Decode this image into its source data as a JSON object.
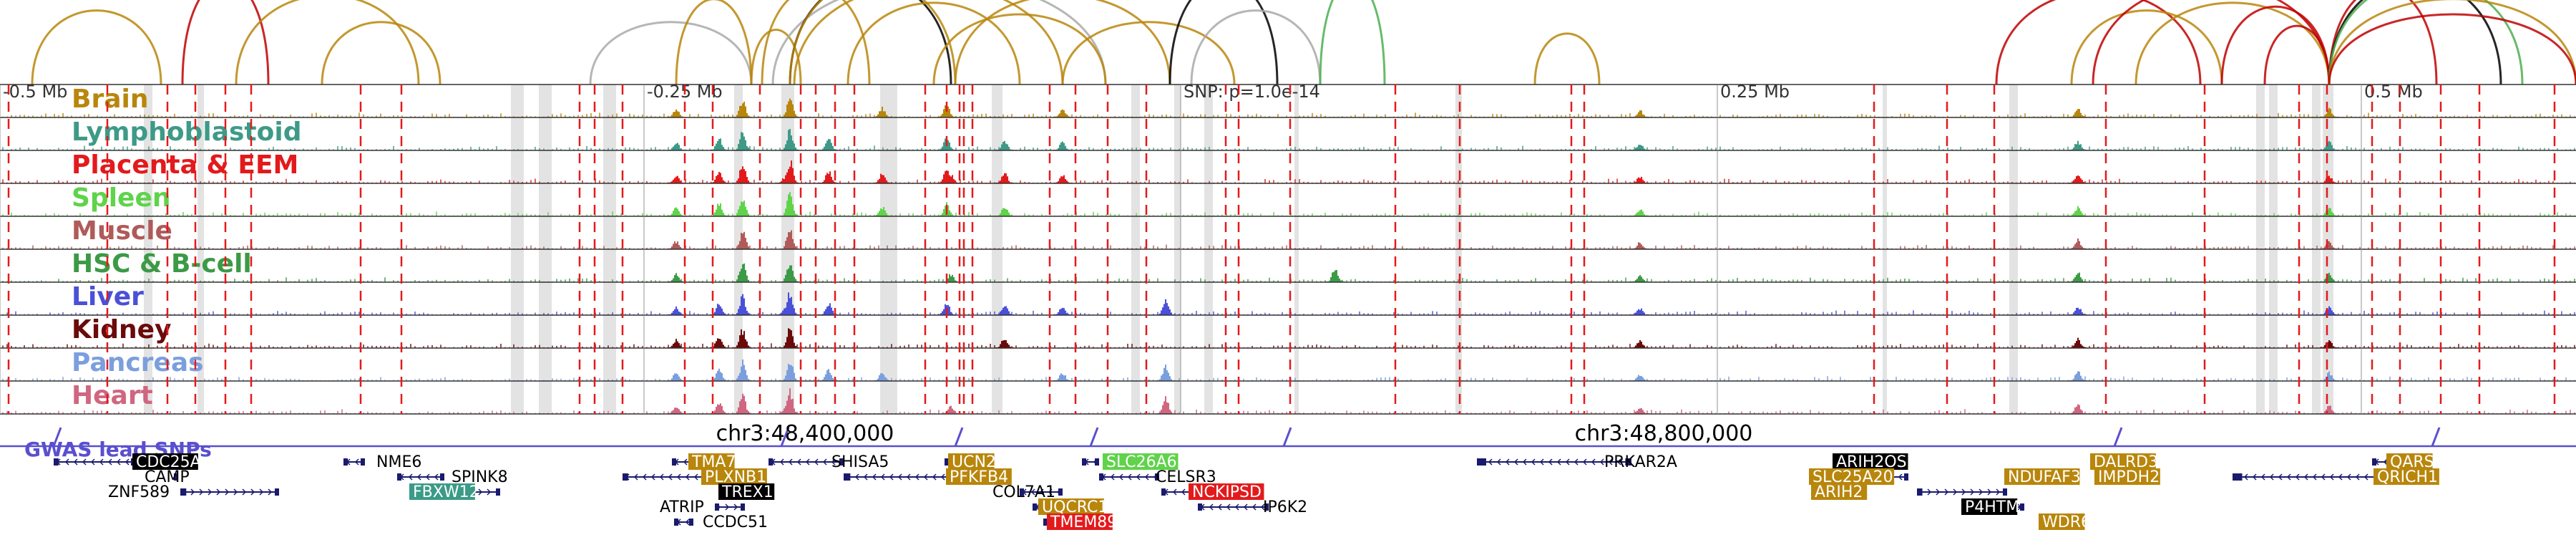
{
  "chart_data": {
    "type": "genome-browser",
    "x_unit": "bp",
    "region": {
      "chrom": "chr3",
      "start": 48025000,
      "end": 49225000
    },
    "distance_labels": [
      {
        "label": "-0.5 Mb",
        "pos": 48025000
      },
      {
        "label": "-0.25 Mb",
        "pos": 48325000
      },
      {
        "label": "SNP: p=1.0e-14",
        "pos": 48575000
      },
      {
        "label": "0.25 Mb",
        "pos": 48825000
      },
      {
        "label": "0.5 Mb",
        "pos": 49125000
      }
    ],
    "coordinate_labels": [
      {
        "label": "chr3:48,400,000",
        "pos": 48400000
      },
      {
        "label": "chr3:48,800,000",
        "pos": 48800000
      }
    ],
    "tracks": [
      {
        "name": "Brain",
        "color": "#b8860b"
      },
      {
        "name": "Lymphoblastoid",
        "color": "#3e9a87"
      },
      {
        "name": "Placenta & EEM",
        "color": "#e31a1c"
      },
      {
        "name": "Spleen",
        "color": "#5fd34a"
      },
      {
        "name": "Muscle",
        "color": "#b05a5a"
      },
      {
        "name": "HSC & B-cell",
        "color": "#3c9a46"
      },
      {
        "name": "Liver",
        "color": "#4a50d8"
      },
      {
        "name": "Kidney",
        "color": "#6b0a0a"
      },
      {
        "name": "Pancreas",
        "color": "#7b9fde"
      },
      {
        "name": "Heart",
        "color": "#d06680"
      }
    ],
    "signal_peaks": [
      {
        "pos": 48340000,
        "height": 0.35,
        "tracks": [
          0,
          1,
          2,
          3,
          4,
          5,
          6,
          7,
          8,
          9
        ]
      },
      {
        "pos": 48360000,
        "height": 0.55,
        "tracks": [
          1,
          2,
          3,
          6,
          7,
          8,
          9
        ]
      },
      {
        "pos": 48371000,
        "height": 0.8,
        "tracks": [
          0,
          1,
          2,
          3,
          4,
          5,
          6,
          7,
          8,
          9
        ]
      },
      {
        "pos": 48391000,
        "height": 0.3,
        "tracks": [
          2,
          6,
          9
        ]
      },
      {
        "pos": 48393000,
        "height": 0.95,
        "tracks": [
          0,
          1,
          2,
          3,
          4,
          5,
          6,
          7,
          8,
          9
        ]
      },
      {
        "pos": 48411000,
        "height": 0.5,
        "tracks": [
          1,
          2,
          6,
          8
        ]
      },
      {
        "pos": 48436000,
        "height": 0.4,
        "tracks": [
          0,
          2,
          3,
          8
        ]
      },
      {
        "pos": 48466000,
        "height": 0.55,
        "tracks": [
          0,
          1,
          2,
          3,
          6
        ]
      },
      {
        "pos": 48468000,
        "height": 0.35,
        "tracks": [
          2,
          5,
          9
        ]
      },
      {
        "pos": 48493000,
        "height": 0.45,
        "tracks": [
          1,
          2,
          3,
          6,
          7
        ]
      },
      {
        "pos": 48520000,
        "height": 0.35,
        "tracks": [
          0,
          1,
          2,
          6,
          8
        ]
      },
      {
        "pos": 48568000,
        "height": 0.7,
        "tracks": [
          6,
          8,
          9
        ]
      },
      {
        "pos": 48647000,
        "height": 0.6,
        "tracks": [
          5
        ]
      },
      {
        "pos": 48789000,
        "height": 0.3,
        "tracks": [
          0,
          1,
          2,
          3,
          4,
          5,
          6,
          7,
          8,
          9
        ]
      },
      {
        "pos": 48993000,
        "height": 0.4,
        "tracks": [
          0,
          1,
          2,
          3,
          4,
          5,
          6,
          7,
          8,
          9
        ]
      },
      {
        "pos": 49110000,
        "height": 0.35,
        "tracks": [
          0,
          1,
          2,
          3,
          4,
          5,
          6,
          7,
          8,
          9
        ]
      }
    ],
    "highlight_regions": [
      {
        "start": 48092000,
        "end": 48096000
      },
      {
        "start": 48117000,
        "end": 48120000
      },
      {
        "start": 48263000,
        "end": 48269000
      },
      {
        "start": 48276000,
        "end": 48282000
      },
      {
        "start": 48306000,
        "end": 48312000
      },
      {
        "start": 48367000,
        "end": 48371000
      },
      {
        "start": 48389000,
        "end": 48395000
      },
      {
        "start": 48435000,
        "end": 48443000
      },
      {
        "start": 48487000,
        "end": 48492000
      },
      {
        "start": 48552000,
        "end": 48556000
      },
      {
        "start": 48572000,
        "end": 48575000
      },
      {
        "start": 48586000,
        "end": 48590000
      },
      {
        "start": 48628000,
        "end": 48630000
      },
      {
        "start": 48703000,
        "end": 48706000
      },
      {
        "start": 48902000,
        "end": 48904000
      },
      {
        "start": 48961000,
        "end": 48965000
      },
      {
        "start": 49076000,
        "end": 49080000
      },
      {
        "start": 49082000,
        "end": 49086000
      },
      {
        "start": 49102000,
        "end": 49106000
      },
      {
        "start": 49107000,
        "end": 49112000
      }
    ],
    "marker_lines": [
      48029000,
      48075000,
      48103000,
      48116000,
      48130000,
      48142000,
      48193000,
      48212000,
      48295000,
      48302000,
      48315000,
      48344000,
      48357000,
      48379000,
      48398000,
      48405000,
      48414000,
      48423000,
      48456000,
      48466000,
      48472000,
      48474000,
      48478000,
      48514000,
      48526000,
      48541000,
      48559000,
      48596000,
      48602000,
      48626000,
      48675000,
      48705000,
      48757000,
      48763000,
      48898000,
      48932000,
      48954000,
      49006000,
      49052000,
      49096000,
      49109000,
      49130000,
      49143000,
      49162000,
      49180000,
      49215000
    ],
    "gwas_lead_snps": {
      "label": "GWAS lead SNPs",
      "color": "#5a4fcf",
      "positions": [
        48050000,
        48389000,
        48470000,
        48533000,
        48623000,
        49010000,
        49158000
      ]
    },
    "arcs": [
      {
        "start": 48040000,
        "end": 48100000,
        "color": "#b8860b",
        "h": 0.6
      },
      {
        "start": 48110000,
        "end": 48150000,
        "color": "#c00000",
        "h": 1.0
      },
      {
        "start": 48135000,
        "end": 48220000,
        "color": "#b8860b",
        "h": 0.8
      },
      {
        "start": 48175000,
        "end": 48230000,
        "color": "#b8860b",
        "h": 0.45
      },
      {
        "start": 48300000,
        "end": 48375000,
        "color": "#a9a9a9",
        "h": 0.45
      },
      {
        "start": 48340000,
        "end": 48375000,
        "color": "#b8860b",
        "h": 0.75
      },
      {
        "start": 48375000,
        "end": 48398000,
        "color": "#b8860b",
        "h": 0.35
      },
      {
        "start": 48380000,
        "end": 48430000,
        "color": "#b8860b",
        "h": 0.9
      },
      {
        "start": 48385000,
        "end": 48540000,
        "color": "#a9a9a9",
        "h": 1.0
      },
      {
        "start": 48393000,
        "end": 48468000,
        "color": "#000000",
        "h": 1.0
      },
      {
        "start": 48393000,
        "end": 48470000,
        "color": "#b8860b",
        "h": 1.0
      },
      {
        "start": 48395000,
        "end": 48520000,
        "color": "#b8860b",
        "h": 0.95
      },
      {
        "start": 48420000,
        "end": 48500000,
        "color": "#b8860b",
        "h": 0.7
      },
      {
        "start": 48460000,
        "end": 48540000,
        "color": "#b8860b",
        "h": 0.55
      },
      {
        "start": 48470000,
        "end": 48570000,
        "color": "#b8860b",
        "h": 0.8
      },
      {
        "start": 48520000,
        "end": 48600000,
        "color": "#b8860b",
        "h": 0.45
      },
      {
        "start": 48570000,
        "end": 48620000,
        "color": "#000000",
        "h": 1.0
      },
      {
        "start": 48580000,
        "end": 48640000,
        "color": "#a9a9a9",
        "h": 0.6
      },
      {
        "start": 48640000,
        "end": 48670000,
        "color": "#4caf50",
        "h": 1.0
      },
      {
        "start": 48740000,
        "end": 48770000,
        "color": "#b8860b",
        "h": 0.3
      },
      {
        "start": 48955000,
        "end": 49050000,
        "color": "#c00000",
        "h": 0.85
      },
      {
        "start": 48990000,
        "end": 49060000,
        "color": "#b8860b",
        "h": 0.6
      },
      {
        "start": 49000000,
        "end": 49110000,
        "color": "#c00000",
        "h": 0.95
      },
      {
        "start": 49020000,
        "end": 49110000,
        "color": "#b8860b",
        "h": 0.7
      },
      {
        "start": 49060000,
        "end": 49110000,
        "color": "#c00000",
        "h": 0.65
      },
      {
        "start": 49080000,
        "end": 49110000,
        "color": "#c00000",
        "h": 0.4
      },
      {
        "start": 49110000,
        "end": 49160000,
        "color": "#c00000",
        "h": 0.9
      },
      {
        "start": 49110000,
        "end": 49190000,
        "color": "#000000",
        "h": 1.0
      },
      {
        "start": 49110000,
        "end": 49200000,
        "color": "#4caf50",
        "h": 1.0
      },
      {
        "start": 49110000,
        "end": 49225000,
        "color": "#b8860b",
        "h": 0.75
      },
      {
        "start": 49110000,
        "end": 49225000,
        "color": "#c00000",
        "h": 0.55
      }
    ],
    "genes": [
      {
        "name": "CDC25A",
        "start": 48050000,
        "end": 48088000,
        "strand": "-",
        "row": 0,
        "label_x": 48088000,
        "box": "#000000"
      },
      {
        "name": "CAMP",
        "start": 48106000,
        "end": 48108000,
        "strand": "+",
        "row": 1,
        "label_x": 48092000
      },
      {
        "name": "ZNF589",
        "start": 48109000,
        "end": 48155000,
        "strand": "+",
        "row": 2,
        "label_x": 48075000
      },
      {
        "name": "NME6",
        "start": 48185000,
        "end": 48195000,
        "strand": "-",
        "row": 0,
        "label_x": 48200000
      },
      {
        "name": "SPINK8",
        "start": 48210000,
        "end": 48232000,
        "strand": "-",
        "row": 1,
        "label_x": 48235000
      },
      {
        "name": "FBXW12",
        "start": 48219000,
        "end": 48258000,
        "strand": "+",
        "row": 2,
        "label_x": 48217000,
        "box": "#3a9b87"
      },
      {
        "name": "TMA7",
        "start": 48338000,
        "end": 48350000,
        "strand": "-",
        "row": 0,
        "label_x": 48347000,
        "box": "#b8860b"
      },
      {
        "name": "PLXNB1",
        "start": 48315000,
        "end": 48358000,
        "strand": "-",
        "row": 1,
        "label_x": 48353000,
        "box": "#b8860b"
      },
      {
        "name": "TREX1",
        "start": 48362000,
        "end": 48370000,
        "strand": "+",
        "row": 2,
        "label_x": 48361000,
        "box": "#000000"
      },
      {
        "name": "ATRIP",
        "start": 48358000,
        "end": 48372000,
        "strand": "+",
        "row": 3,
        "label_x": 48332000
      },
      {
        "name": "CCDC51",
        "start": 48339000,
        "end": 48348000,
        "strand": "-",
        "row": 4,
        "label_x": 48352000
      },
      {
        "name": "SHISA5",
        "start": 48383000,
        "end": 48418000,
        "strand": "-",
        "row": 0,
        "label_x": 48412000
      },
      {
        "name": "UCN2",
        "start": 48465000,
        "end": 48468000,
        "strand": "-",
        "row": 0,
        "label_x": 48468000,
        "box": "#b8860b"
      },
      {
        "name": "PFKFB4",
        "start": 48418000,
        "end": 48470000,
        "strand": "-",
        "row": 1,
        "label_x": 48467000,
        "box": "#b8860b"
      },
      {
        "name": "COL7A1",
        "start": 48500000,
        "end": 48520000,
        "strand": "-",
        "row": 2,
        "label_x": 48487000
      },
      {
        "name": "UQCRC1",
        "start": 48506000,
        "end": 48518000,
        "strand": "-",
        "row": 3,
        "label_x": 48510000,
        "box": "#b8860b"
      },
      {
        "name": "TMEM89",
        "start": 48511000,
        "end": 48514000,
        "strand": "-",
        "row": 4,
        "label_x": 48514000,
        "box": "#e31a1c"
      },
      {
        "name": "SLC26A6",
        "start": 48529000,
        "end": 48537000,
        "strand": "-",
        "row": 0,
        "label_x": 48540000,
        "box": "#5fd34a"
      },
      {
        "name": "CELSR3",
        "start": 48537000,
        "end": 48565000,
        "strand": "-",
        "row": 1,
        "label_x": 48563000
      },
      {
        "name": "NCKIPSD",
        "start": 48566000,
        "end": 48585000,
        "strand": "-",
        "row": 2,
        "label_x": 48580000,
        "box": "#e31a1c"
      },
      {
        "name": "IP6K2",
        "start": 48583000,
        "end": 48616000,
        "strand": "-",
        "row": 3,
        "label_x": 48613000
      },
      {
        "name": "PRKAR2A",
        "start": 48713000,
        "end": 48785000,
        "strand": "-",
        "row": 0,
        "label_x": 48772000
      },
      {
        "name": "ARIH2OS",
        "start": 48879000,
        "end": 48888000,
        "strand": "-",
        "row": 0,
        "label_x": 48880000,
        "box": "#000000"
      },
      {
        "name": "SLC25A20",
        "start": 48872000,
        "end": 48914000,
        "strand": "-",
        "row": 1,
        "label_x": 48869000,
        "box": "#b8860b"
      },
      {
        "name": "ARIH2",
        "start": 48918000,
        "end": 48960000,
        "strand": "+",
        "row": 2,
        "label_x": 48870000,
        "box": "#b8860b"
      },
      {
        "name": "P4HTM",
        "start": 48944000,
        "end": 48968000,
        "strand": "+",
        "row": 3,
        "label_x": 48940000,
        "box": "#000000"
      },
      {
        "name": "NDUFAF3",
        "start": 48960000,
        "end": 48982000,
        "strand": "+",
        "row": 1,
        "label_x": 48960000,
        "box": "#b8860b"
      },
      {
        "name": "DALRD3",
        "start": 48999000,
        "end": 49007000,
        "strand": "-",
        "row": 0,
        "label_x": 49000000,
        "box": "#b8860b"
      },
      {
        "name": "IMPDH2",
        "start": 49008000,
        "end": 49016000,
        "strand": "-",
        "row": 1,
        "label_x": 49002000,
        "box": "#b8860b"
      },
      {
        "name": "WDR6",
        "start": 48978000,
        "end": 48992000,
        "strand": "+",
        "row": 4,
        "label_x": 48976000,
        "box": "#b8860b"
      },
      {
        "name": "QARS",
        "start": 49130000,
        "end": 49140000,
        "strand": "-",
        "row": 0,
        "label_x": 49138000,
        "box": "#b8860b"
      },
      {
        "name": "QRICH1",
        "start": 49065000,
        "end": 49140000,
        "strand": "-",
        "row": 1,
        "label_x": 49132000,
        "box": "#b8860b"
      }
    ]
  }
}
